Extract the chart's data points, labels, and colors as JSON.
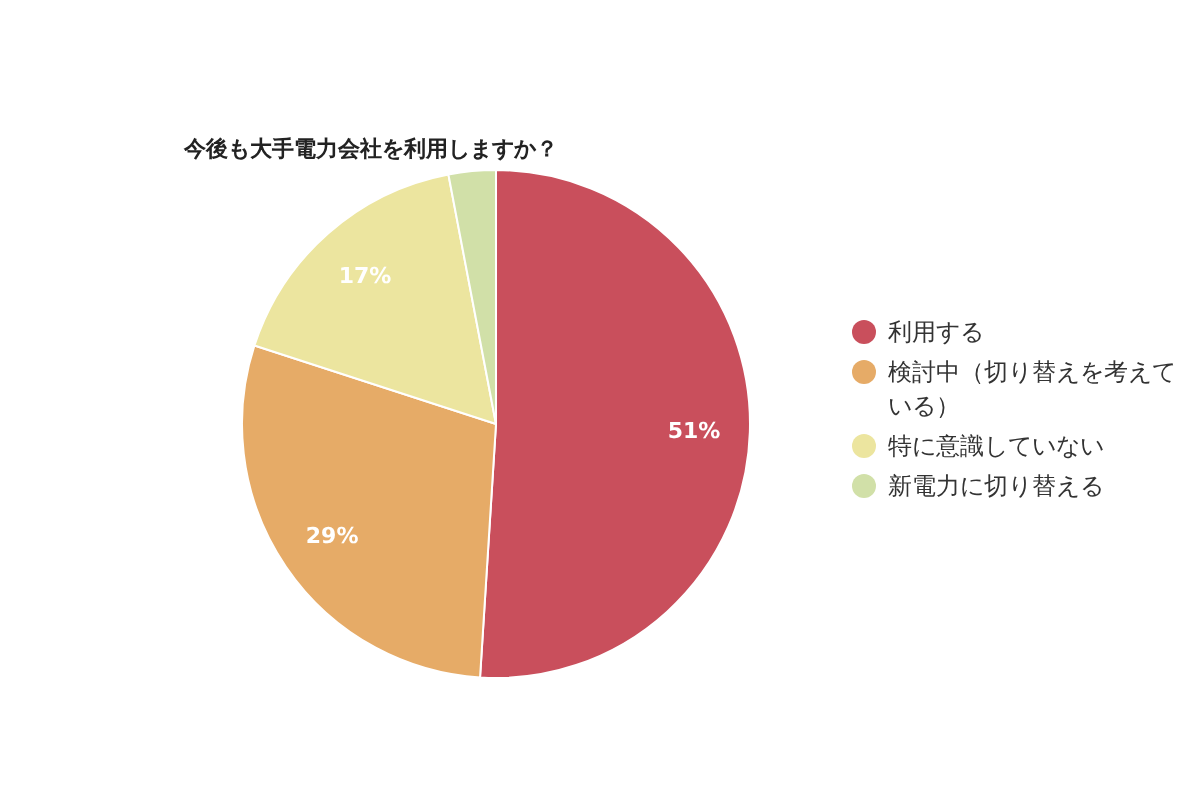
{
  "chart_data": {
    "type": "pie",
    "title": "今後も大手電力会社を利用しますか？",
    "categories": [
      "利用する",
      "検討中（切り替えを考えている）",
      "特に意識していない",
      "新電力に切り替える"
    ],
    "values": [
      51,
      29,
      17,
      3
    ],
    "colors": [
      "#c94f5c",
      "#e6ab67",
      "#ece59f",
      "#d1e0a8"
    ],
    "value_labels": [
      "51%",
      "29%",
      "17%",
      null
    ],
    "legend": "right"
  }
}
